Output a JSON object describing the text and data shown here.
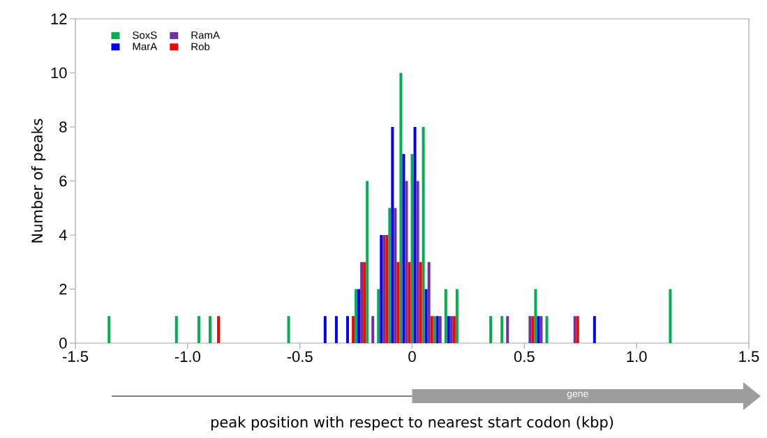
{
  "chart_data": {
    "type": "bar",
    "xlabel": "peak position with respect to nearest start codon (kbp)",
    "ylabel": "Number of peaks",
    "xlim": [
      -1.5,
      1.5
    ],
    "ylim": [
      0,
      12
    ],
    "xticks": [
      -1.5,
      {
        "value": -1,
        "label": "-1.0"
      },
      -0.5,
      0,
      0.5,
      {
        "value": 1,
        "label": "1.0"
      },
      1.5
    ],
    "yticks": [
      0,
      2,
      4,
      6,
      8,
      10,
      12
    ],
    "grid": false,
    "legend": "top left",
    "annotations": [
      "gene"
    ],
    "series": [
      {
        "name": "SoxS",
        "color": "#00b050",
        "x": [
          -1.35,
          -1.05,
          -0.95,
          -0.9,
          -0.55,
          -0.25,
          -0.2,
          -0.15,
          -0.1,
          -0.05,
          0,
          0.05,
          0.1,
          0.15,
          0.2,
          0.35,
          0.4,
          0.55,
          0.6,
          1.15
        ],
        "values": [
          1,
          1,
          1,
          1,
          1,
          2,
          6,
          2,
          5,
          10,
          7,
          8,
          1,
          2,
          2,
          1,
          1,
          2,
          1,
          2
        ]
      },
      {
        "name": "MarA",
        "color": "#0000ff",
        "x": [
          -0.3875,
          -0.3375,
          -0.2875,
          -0.2375,
          -0.1375,
          -0.0875,
          -0.0375,
          0.0125,
          0.0625,
          0.1125,
          0.1625,
          0.5625,
          0.8125
        ],
        "values": [
          1,
          1,
          1,
          2,
          4,
          8,
          7,
          8,
          2,
          1,
          1,
          1,
          1
        ]
      },
      {
        "name": "RamA",
        "color": "#7030a0",
        "x": [
          -0.225,
          -0.175,
          -0.125,
          -0.075,
          -0.025,
          0.025,
          0.075,
          0.125,
          0.175,
          0.425,
          0.525,
          0.575,
          0.725
        ],
        "values": [
          3,
          1,
          4,
          5,
          6,
          6,
          3,
          1,
          1,
          1,
          1,
          1,
          1
        ]
      },
      {
        "name": "Rob",
        "color": "#ff0000",
        "x": [
          -0.8625,
          -0.2625,
          -0.2125,
          -0.1125,
          -0.0625,
          -0.0125,
          0.0375,
          0.0875,
          0.1875,
          0.5375,
          0.7375
        ],
        "values": [
          1,
          1,
          3,
          4,
          3,
          3,
          3,
          1,
          1,
          1,
          1
        ]
      }
    ]
  }
}
